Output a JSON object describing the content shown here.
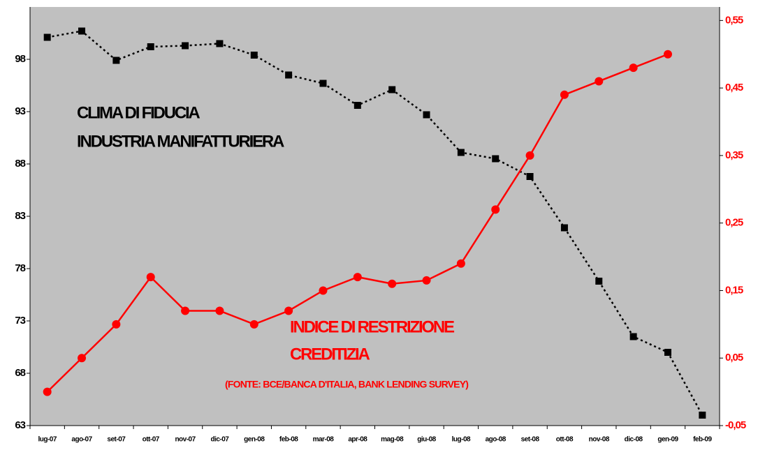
{
  "chart_data": {
    "type": "line",
    "categories": [
      "lug-07",
      "ago-07",
      "set-07",
      "ott-07",
      "nov-07",
      "dic-07",
      "gen-08",
      "feb-08",
      "mar-08",
      "apr-08",
      "mag-08",
      "giu-08",
      "lug-08",
      "ago-08",
      "set-08",
      "ott-08",
      "nov-08",
      "dic-08",
      "gen-09",
      "feb-09"
    ],
    "series": [
      {
        "color": "#000000",
        "axis": "y",
        "values": [
          100.1,
          100.7,
          97.9,
          99.2,
          99.3,
          99.5,
          98.4,
          96.5,
          95.7,
          93.6,
          95.1,
          92.7,
          89.1,
          88.5,
          86.8,
          81.9,
          76.8,
          71.5,
          70.0,
          64.0
        ]
      },
      {
        "color": "#ff0000",
        "axis": "y2",
        "values": [
          0.0,
          0.05,
          0.1,
          0.17,
          0.12,
          0.12,
          0.1,
          0.12,
          0.15,
          0.17,
          0.16,
          0.165,
          0.19,
          0.27,
          0.35,
          0.44,
          0.46,
          0.48,
          0.5,
          null
        ]
      }
    ],
    "annotations": [
      {
        "text": "CLIMA DI FIDUCIA",
        "color": "#000000"
      },
      {
        "text": "INDUSTRIA MANIFATTURIERA",
        "color": "#000000"
      },
      {
        "text": "INDICE DI RESTRIZIONE",
        "color": "#ff0000"
      },
      {
        "text": "CREDITIZIA",
        "color": "#ff0000"
      },
      {
        "text": "(FONTE: BCE/BANCA D'ITALIA, BANK LENDING SURVEY)",
        "color": "#ff0000"
      }
    ],
    "ylim": [
      63,
      103
    ],
    "yticks": [
      63,
      68,
      73,
      78,
      83,
      88,
      93,
      98
    ],
    "y2lim": [
      -0.05,
      0.57
    ],
    "y2ticks": [
      {
        "value": -0.05,
        "label": "-0,05"
      },
      {
        "value": 0.05,
        "label": "0,05"
      },
      {
        "value": 0.15,
        "label": "0,15"
      },
      {
        "value": 0.25,
        "label": "0,25"
      },
      {
        "value": 0.35,
        "label": "0,35"
      },
      {
        "value": 0.45,
        "label": "0,45"
      },
      {
        "value": 0.55,
        "label": "0,55"
      }
    ],
    "plot_background": "#c0c0c0"
  }
}
